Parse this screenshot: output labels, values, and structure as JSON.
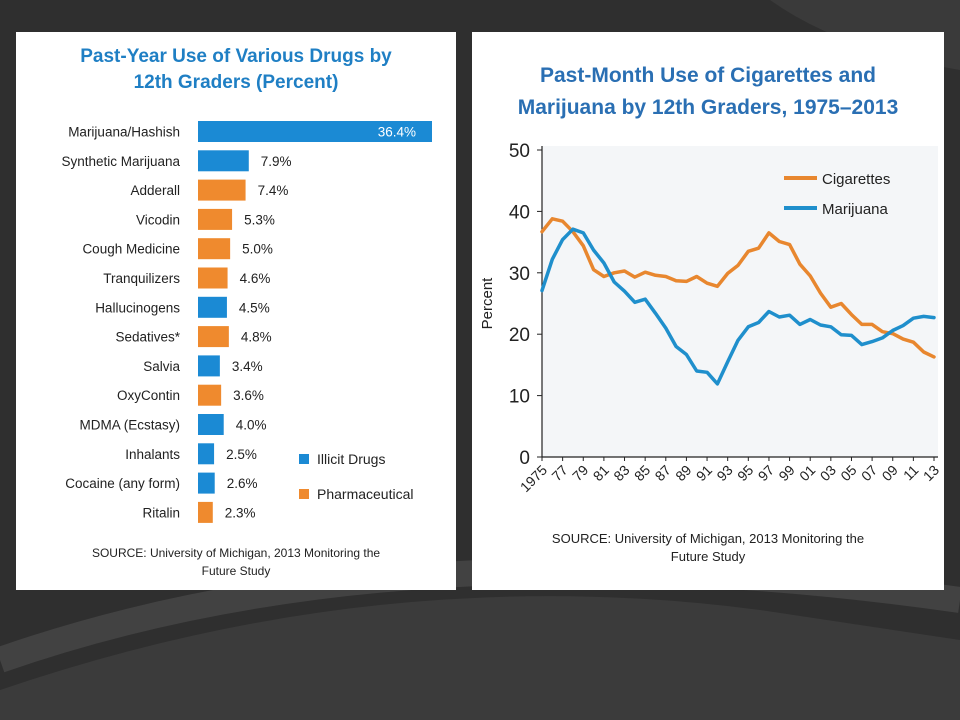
{
  "colors": {
    "illicit": "#1b8ad4",
    "pharmaceutical": "#ef8a2e",
    "cigarettes": "#e8872f",
    "marijuana": "#1f8fcc",
    "background": "#2f2f2f"
  },
  "chart_data": [
    {
      "type": "bar",
      "orientation": "horizontal",
      "title": "Past-Year Use of Various Drugs by\n12th Graders (Percent)",
      "categories": [
        "Marijuana/Hashish",
        "Synthetic Marijuana",
        "Adderall",
        "Vicodin",
        "Cough Medicine",
        "Tranquilizers",
        "Hallucinogens",
        "Sedatives*",
        "Salvia",
        "OxyContin",
        "MDMA (Ecstasy)",
        "Inhalants",
        "Cocaine (any form)",
        "Ritalin"
      ],
      "values": [
        36.4,
        7.9,
        7.4,
        5.3,
        5.0,
        4.6,
        4.5,
        4.8,
        3.4,
        3.6,
        4.0,
        2.5,
        2.6,
        2.3
      ],
      "value_labels": [
        "36.4%",
        "7.9%",
        "7.4%",
        "5.3%",
        "5.0%",
        "4.6%",
        "4.5%",
        "4.8%",
        "3.4%",
        "3.6%",
        "4.0%",
        "2.5%",
        "2.6%",
        "2.3%"
      ],
      "group": [
        "Illicit Drugs",
        "Illicit Drugs",
        "Pharmaceutical",
        "Pharmaceutical",
        "Pharmaceutical",
        "Pharmaceutical",
        "Illicit Drugs",
        "Pharmaceutical",
        "Illicit Drugs",
        "Pharmaceutical",
        "Illicit Drugs",
        "Illicit Drugs",
        "Illicit Drugs",
        "Pharmaceutical"
      ],
      "legend": [
        "Illicit Drugs",
        "Pharmaceutical"
      ],
      "legend_position": "bottom-right",
      "xlim": [
        0,
        36.4
      ],
      "source": "SOURCE: University of Michigan, 2013 Monitoring the\nFuture Study"
    },
    {
      "type": "line",
      "title": "Past-Month Use of Cigarettes and\nMarijuana by 12th Graders, 1975–2013",
      "x": [
        1975,
        1976,
        1977,
        1978,
        1979,
        1980,
        1981,
        1982,
        1983,
        1984,
        1985,
        1986,
        1987,
        1988,
        1989,
        1990,
        1991,
        1992,
        1993,
        1994,
        1995,
        1996,
        1997,
        1998,
        1999,
        2000,
        2001,
        2002,
        2003,
        2004,
        2005,
        2006,
        2007,
        2008,
        2009,
        2010,
        2011,
        2012,
        2013
      ],
      "x_tick_labels": [
        "1975",
        "77",
        "79",
        "81",
        "83",
        "85",
        "87",
        "89",
        "91",
        "93",
        "95",
        "97",
        "99",
        "01",
        "03",
        "05",
        "07",
        "09",
        "11",
        "13"
      ],
      "series": [
        {
          "name": "Cigarettes",
          "values": [
            36.7,
            38.8,
            38.4,
            36.7,
            34.4,
            30.5,
            29.4,
            30.0,
            30.3,
            29.3,
            30.1,
            29.6,
            29.4,
            28.7,
            28.6,
            29.4,
            28.3,
            27.8,
            29.9,
            31.2,
            33.5,
            34.0,
            36.5,
            35.1,
            34.6,
            31.4,
            29.5,
            26.7,
            24.4,
            25.0,
            23.2,
            21.6,
            21.6,
            20.4,
            20.1,
            19.2,
            18.7,
            17.1,
            16.3
          ]
        },
        {
          "name": "Marijuana",
          "values": [
            27.1,
            32.2,
            35.4,
            37.1,
            36.5,
            33.7,
            31.6,
            28.5,
            27.0,
            25.2,
            25.7,
            23.4,
            21.0,
            18.0,
            16.7,
            14.0,
            13.8,
            11.9,
            15.5,
            19.0,
            21.2,
            21.9,
            23.7,
            22.8,
            23.1,
            21.6,
            22.4,
            21.5,
            21.2,
            19.9,
            19.8,
            18.3,
            18.8,
            19.4,
            20.6,
            21.4,
            22.6,
            22.9,
            22.7
          ]
        }
      ],
      "ylabel": "Percent",
      "ylim": [
        0,
        50
      ],
      "y_ticks": [
        0,
        10,
        20,
        30,
        40,
        50
      ],
      "grid": false,
      "legend_position": "top-right",
      "source": "SOURCE: University of Michigan, 2013 Monitoring the\nFuture Study"
    }
  ]
}
